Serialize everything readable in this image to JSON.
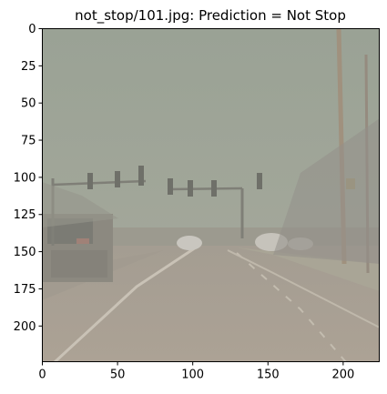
{
  "figure": {
    "title": "not_stop/101.jpg: Prediction = Not Stop",
    "image_description_colors": {
      "sky": "#9aa295",
      "road": "#a89f93",
      "frame": "#000000"
    }
  },
  "axes": {
    "x_ticks": [
      {
        "value": 0,
        "label": "0"
      },
      {
        "value": 50,
        "label": "50"
      },
      {
        "value": 100,
        "label": "100"
      },
      {
        "value": 150,
        "label": "150"
      },
      {
        "value": 200,
        "label": "200"
      }
    ],
    "y_ticks": [
      {
        "value": 0,
        "label": "0"
      },
      {
        "value": 25,
        "label": "25"
      },
      {
        "value": 50,
        "label": "50"
      },
      {
        "value": 75,
        "label": "75"
      },
      {
        "value": 100,
        "label": "100"
      },
      {
        "value": 125,
        "label": "125"
      },
      {
        "value": 150,
        "label": "150"
      },
      {
        "value": 175,
        "label": "175"
      },
      {
        "value": 200,
        "label": "200"
      }
    ],
    "xlim": [
      0,
      224
    ],
    "ylim": [
      224,
      0
    ]
  }
}
